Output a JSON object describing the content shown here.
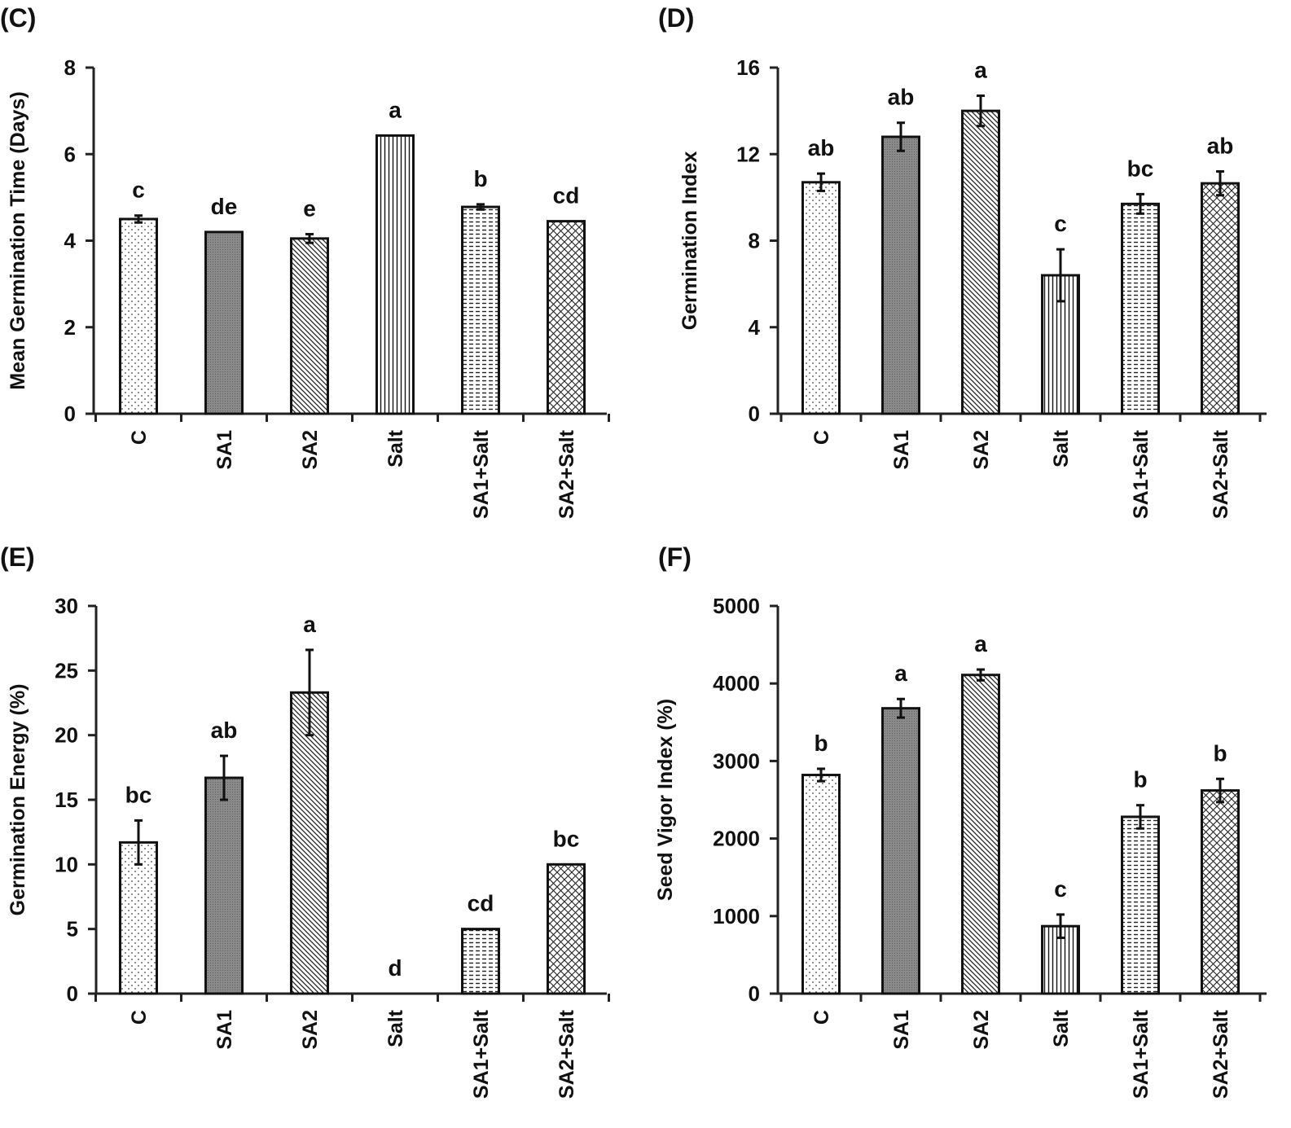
{
  "chart_data": [
    {
      "panel_label": "(C)",
      "type": "bar",
      "categories": [
        "C",
        "SA1",
        "SA2",
        "Salt",
        "SA1+Salt",
        "SA2+Salt"
      ],
      "values": [
        4.5,
        4.2,
        4.05,
        6.43,
        4.78,
        4.45
      ],
      "errors": [
        0.08,
        0.0,
        0.1,
        0.0,
        0.06,
        0.0
      ],
      "letters": [
        "c",
        "de",
        "e",
        "a",
        "b",
        "cd"
      ],
      "ylabel": "Mean Germination Time (Days)",
      "ylim": [
        0,
        8
      ],
      "yticks": [
        0,
        2,
        4,
        6,
        8
      ],
      "ytick_labels": [
        "0",
        "2",
        "4",
        "6",
        "8"
      ]
    },
    {
      "panel_label": "(D)",
      "type": "bar",
      "categories": [
        "C",
        "SA1",
        "SA2",
        "Salt",
        "SA1+Salt",
        "SA2+Salt"
      ],
      "values": [
        10.7,
        12.8,
        14.0,
        6.4,
        9.7,
        10.65
      ],
      "errors": [
        0.4,
        0.65,
        0.7,
        1.2,
        0.45,
        0.55
      ],
      "letters": [
        "ab",
        "ab",
        "a",
        "c",
        "bc",
        "ab"
      ],
      "ylabel": "Germination  Index",
      "ylim": [
        0,
        16
      ],
      "yticks": [
        0,
        4,
        8,
        12,
        16
      ],
      "ytick_labels": [
        "0",
        "4",
        "8",
        "12",
        "16"
      ]
    },
    {
      "panel_label": "(E)",
      "type": "bar",
      "categories": [
        "C",
        "SA1",
        "SA2",
        "Salt",
        "SA1+Salt",
        "SA2+Salt"
      ],
      "values": [
        11.7,
        16.7,
        23.3,
        0,
        5.0,
        10.0
      ],
      "errors": [
        1.7,
        1.7,
        3.3,
        0,
        0,
        0
      ],
      "letters": [
        "bc",
        "ab",
        "a",
        "d",
        "cd",
        "bc"
      ],
      "ylabel": "Germination  Energy (%)",
      "ylim": [
        0,
        30
      ],
      "yticks": [
        0,
        5,
        10,
        15,
        20,
        25,
        30
      ],
      "ytick_labels": [
        "0",
        "5",
        "10",
        "15",
        "20",
        "25",
        "30"
      ]
    },
    {
      "panel_label": "(F)",
      "type": "bar",
      "categories": [
        "C",
        "SA1",
        "SA2",
        "Salt",
        "SA1+Salt",
        "SA2+Salt"
      ],
      "values": [
        2820,
        3680,
        4110,
        870,
        2280,
        2620
      ],
      "errors": [
        80,
        120,
        70,
        150,
        150,
        150
      ],
      "letters": [
        "b",
        "a",
        "a",
        "c",
        "b",
        "b"
      ],
      "ylabel": "Seed Vigor Index (%)",
      "ylim": [
        0,
        5000
      ],
      "yticks": [
        0,
        1000,
        2000,
        3000,
        4000,
        5000
      ],
      "ytick_labels": [
        "0",
        "1000",
        "2000",
        "3000",
        "4000",
        "5000"
      ]
    }
  ]
}
